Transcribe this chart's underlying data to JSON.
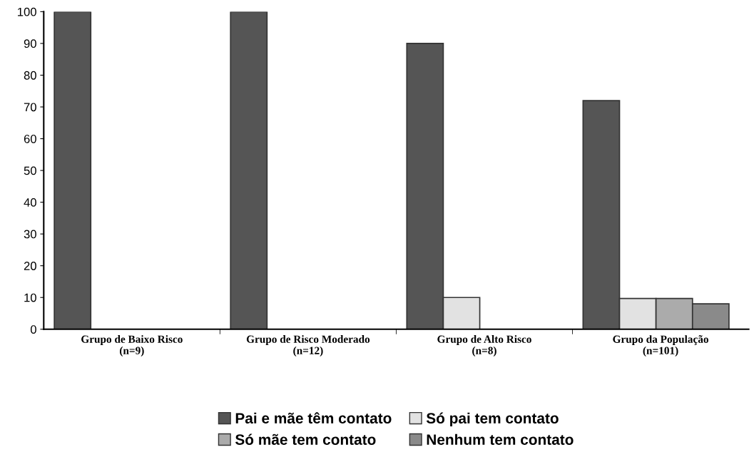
{
  "chart_data": {
    "type": "bar",
    "categories": [
      "Grupo de Baixo Risco\n(n=9)",
      "Grupo de Risco Moderado\n(n=12)",
      "Grupo de Alto Risco\n(n=8)",
      "Grupo da População\n(n=101)"
    ],
    "series": [
      {
        "name": "Pai e mãe têm contato",
        "color": "#555555",
        "values": [
          100,
          100,
          90,
          72
        ]
      },
      {
        "name": "Só pai tem contato",
        "color": "#e2e2e2",
        "values": [
          0,
          0,
          10,
          9.7
        ]
      },
      {
        "name": "Só mãe tem contato",
        "color": "#ababab",
        "values": [
          0,
          0,
          0,
          9.7
        ]
      },
      {
        "name": "Nenhum tem contato",
        "color": "#8a8a8a",
        "values": [
          0,
          0,
          0,
          8
        ]
      }
    ],
    "ylim": [
      0,
      100
    ],
    "yticks": [
      0,
      10,
      20,
      30,
      40,
      50,
      60,
      70,
      80,
      90,
      100
    ],
    "grid": false,
    "legend": "bottom"
  }
}
